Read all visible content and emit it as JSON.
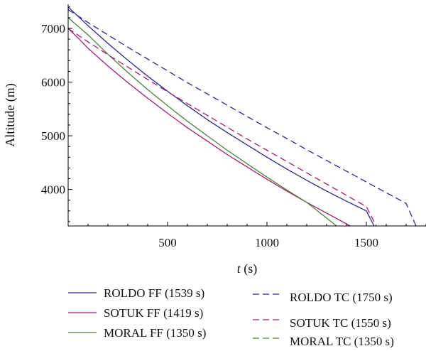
{
  "chart_data": {
    "type": "line",
    "xlabel_var": "t",
    "xlabel_unit": "(s)",
    "ylabel": "Altitude (m)",
    "xlim": [
      0,
      1800
    ],
    "ylim": [
      3320,
      7450
    ],
    "x_ticks": [
      500,
      1000,
      1500
    ],
    "y_ticks": [
      4000,
      5000,
      6000,
      7000
    ],
    "grid": false,
    "legend": "bottom",
    "series": [
      {
        "name": "ROLDO FF (1539 s)",
        "color": "#2a2a8e",
        "dash": false,
        "x": [
          0,
          100,
          200,
          300,
          400,
          500,
          600,
          700,
          800,
          900,
          1000,
          1100,
          1200,
          1300,
          1400,
          1500,
          1539
        ],
        "y": [
          7400,
          7050,
          6720,
          6410,
          6110,
          5830,
          5560,
          5300,
          5060,
          4830,
          4600,
          4380,
          4170,
          3970,
          3780,
          3600,
          3320
        ]
      },
      {
        "name": "SOTUK FF (1419 s)",
        "color": "#a02070",
        "dash": false,
        "x": [
          0,
          50,
          100,
          200,
          300,
          400,
          500,
          600,
          700,
          800,
          900,
          1000,
          1100,
          1200,
          1300,
          1419
        ],
        "y": [
          7000,
          6820,
          6630,
          6300,
          5990,
          5700,
          5420,
          5150,
          4900,
          4650,
          4420,
          4190,
          3970,
          3760,
          3560,
          3320
        ]
      },
      {
        "name": "MORAL FF (1350 s)",
        "color": "#4e8040",
        "dash": false,
        "x": [
          0,
          100,
          200,
          300,
          400,
          500,
          600,
          700,
          800,
          900,
          1000,
          1100,
          1200,
          1350
        ],
        "y": [
          7200,
          6880,
          6520,
          6180,
          5860,
          5560,
          5270,
          5000,
          4730,
          4480,
          4230,
          3990,
          3760,
          3320
        ]
      },
      {
        "name": "ROLDO TC (1750 s)",
        "color": "#2a2a8e",
        "dash": true,
        "x": [
          0,
          100,
          200,
          300,
          400,
          500,
          600,
          700,
          800,
          900,
          1000,
          1100,
          1200,
          1300,
          1400,
          1500,
          1600,
          1700,
          1750
        ],
        "y": [
          7350,
          7110,
          6880,
          6650,
          6430,
          6210,
          5990,
          5780,
          5570,
          5360,
          5150,
          4950,
          4740,
          4540,
          4340,
          4140,
          3940,
          3740,
          3320
        ]
      },
      {
        "name": "SOTUK TC (1550 s)",
        "color": "#a02070",
        "dash": true,
        "x": [
          0,
          100,
          200,
          300,
          400,
          500,
          600,
          700,
          800,
          900,
          1000,
          1100,
          1200,
          1300,
          1400,
          1500,
          1550
        ],
        "y": [
          7000,
          6750,
          6510,
          6280,
          6050,
          5820,
          5600,
          5380,
          5160,
          4940,
          4730,
          4520,
          4310,
          4100,
          3890,
          3680,
          3320
        ]
      },
      {
        "name": "MORAL TC (1350 s)",
        "color": "#4e8040",
        "dash": true,
        "x": [],
        "y": []
      }
    ]
  }
}
